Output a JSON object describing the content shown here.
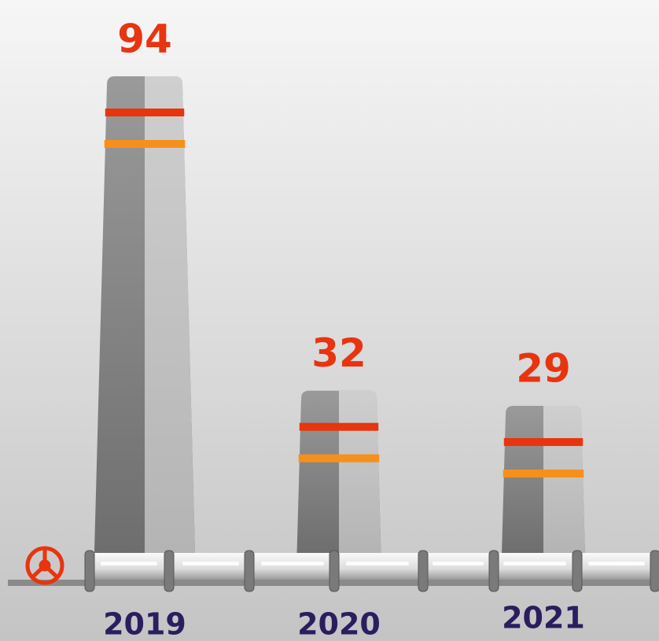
{
  "chart_data": {
    "type": "bar",
    "categories": [
      "2019",
      "2020",
      "2021"
    ],
    "values": [
      94,
      32,
      29
    ],
    "color": "#9a9a9a",
    "stripe_colors": [
      "#e8340f",
      "#f7901a"
    ]
  }
}
